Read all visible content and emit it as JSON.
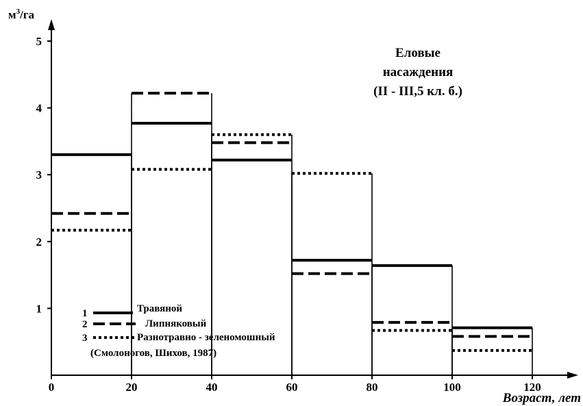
{
  "chart_data": {
    "type": "step",
    "title_lines": [
      "Еловые",
      "насаждения",
      "(II - III,5 кл. б.)"
    ],
    "ylabel_base": "м",
    "ylabel_sup": "3",
    "ylabel_suffix": "/га",
    "xlabel": "Возраст,  лет",
    "x_ticks": [
      0,
      20,
      40,
      60,
      80,
      100,
      120
    ],
    "y_ticks": [
      1,
      2,
      3,
      4,
      5
    ],
    "xlim": [
      0,
      130
    ],
    "ylim": [
      0,
      5.3
    ],
    "bins": [
      [
        0,
        20
      ],
      [
        20,
        40
      ],
      [
        40,
        60
      ],
      [
        60,
        80
      ],
      [
        80,
        100
      ],
      [
        100,
        120
      ]
    ],
    "series": [
      {
        "name": "Травяной",
        "number": "1",
        "style": "solid",
        "values": [
          3.3,
          3.77,
          3.22,
          1.72,
          1.64,
          0.71
        ]
      },
      {
        "name": "Липняковый",
        "number": "2",
        "style": "dashed",
        "values": [
          2.42,
          4.22,
          3.48,
          1.52,
          0.79,
          0.58
        ]
      },
      {
        "name": "Разнотравно-зеленомошный",
        "number": "3",
        "style": "dotted",
        "values": [
          2.17,
          3.08,
          3.6,
          3.02,
          0.67,
          0.37
        ]
      }
    ],
    "source": "(Смолоногов, Шихов, 1987)",
    "bar_color": "#000000"
  }
}
